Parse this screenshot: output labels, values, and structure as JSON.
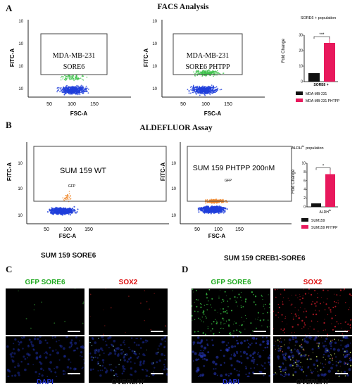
{
  "panelA": {
    "letter": "A",
    "title": "FACS Analysis",
    "plot1": {
      "sample": "MDA-MB-231",
      "sub": "SORE6",
      "ylabel": "FITC-A",
      "xlabel": "FSC-A",
      "yticks": [
        "10",
        "10",
        "10",
        "10"
      ],
      "xticks": [
        "50",
        "100",
        "150"
      ]
    },
    "plot2": {
      "sample": "MDA-MB-231",
      "sub": "SORE6 PHTPP",
      "ylabel": "FITC-A",
      "xlabel": "FSC-A",
      "yticks": [
        "10",
        "10",
        "10",
        "10"
      ],
      "xticks": [
        "50",
        "100",
        "150"
      ]
    },
    "bar_title": "SORE6 + population",
    "bar_ylabel": "Fold Change",
    "bar_xlabel": "SORE6 +",
    "significance": "***",
    "legend": [
      "MDA-MB-231",
      "MDA-MB-231 PHTPP"
    ]
  },
  "panelB": {
    "letter": "B",
    "title": "ALDEFLUOR Assay",
    "plot1": {
      "sample": "SUM 159 WT",
      "gate": "GFP",
      "ylabel": "FITC-A",
      "xlabel": "FSC-A",
      "yticks": [
        "10",
        "10",
        "10"
      ],
      "xticks": [
        "50",
        "100",
        "150"
      ]
    },
    "plot2": {
      "sample": "SUM 159 PHTPP 200nM",
      "gate": "GFP",
      "ylabel": "FITC-A",
      "xlabel": "FSC-A",
      "yticks": [
        "10",
        "10",
        "10"
      ],
      "xticks": [
        "50",
        "100",
        "150"
      ]
    },
    "bar_title_main": "ALDH",
    "bar_title_sup": "br",
    "bar_title_rest": "population",
    "bar_ylabel": "Fold Change",
    "bar_xlabel": "ALDH",
    "bar_xlabel_sup": "br",
    "significance": "*",
    "legend": [
      "SUM159",
      "SUM159 PHTPP"
    ]
  },
  "panelC": {
    "letter": "C",
    "title": "SUM 159 SORE6",
    "labels": {
      "gfp": "GFP SORE6",
      "sox2": "SOX2",
      "dapi": "DAPI",
      "overlay": "OVERLAY"
    }
  },
  "panelD": {
    "letter": "D",
    "title": "SUM 159 CREB1-SORE6",
    "labels": {
      "gfp": "GFP SORE6",
      "sox2": "SOX2",
      "dapi": "DAPI",
      "overlay": "OVERLAY"
    }
  },
  "colors": {
    "control_bar": "#111111",
    "treated_bar": "#e8185c",
    "gfp_label": "#22aa22",
    "sox2_label": "#dd1111",
    "dapi_label": "#2233cc",
    "blue_events": "#1f3fdb",
    "green_events": "#3cc24a",
    "orange_events": "#f08a2e"
  },
  "chart_data": [
    {
      "type": "bar",
      "title": "SORE6 + population",
      "ylabel": "Fold Change",
      "xlabel": "SORE6 +",
      "categories": [
        "MDA-MB-231",
        "MDA-MB-231 PHTPP"
      ],
      "values": [
        5.5,
        25
      ],
      "ylim": [
        0,
        30
      ],
      "yticks": [
        0,
        10,
        20,
        30
      ],
      "grid": false,
      "legend_position": "bottom"
    },
    {
      "type": "bar",
      "title": "ALDH br population",
      "ylabel": "Fold Change",
      "xlabel": "ALDH br",
      "categories": [
        "SUM159",
        "SUM159 PHTPP"
      ],
      "values": [
        0.8,
        7.5
      ],
      "ylim": [
        0,
        10
      ],
      "yticks": [
        0,
        2,
        4,
        6,
        8,
        10
      ],
      "grid": false,
      "legend_position": "bottom"
    }
  ]
}
